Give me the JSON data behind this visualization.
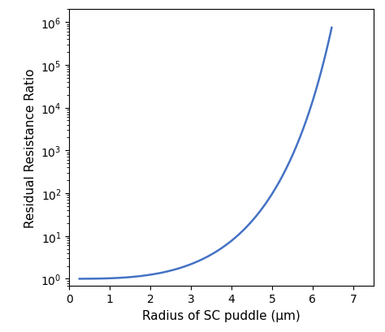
{
  "xlabel": "Radius of SC puddle (μm)",
  "ylabel": "Residual Resistance Ratio",
  "line_color": "#4472C4",
  "line_width": 1.8,
  "xlim": [
    0,
    7.5
  ],
  "ylim_log": [
    0.7,
    2000000.0
  ],
  "x_start": 0.25,
  "x_end": 6.47,
  "formula_A": 1.0,
  "formula_C": 46.0,
  "background_color": "#ffffff",
  "figsize": [
    4.74,
    4.1
  ],
  "dpi": 100
}
